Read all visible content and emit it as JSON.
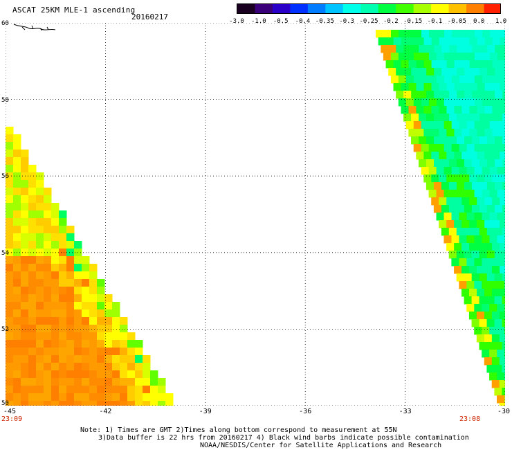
{
  "header": {
    "title": "ASCAT 25KM MLE-1 ascending",
    "date": "20160217"
  },
  "colorbar": {
    "labels": [
      "-3.0",
      "-1.0",
      "-0.5",
      "-0.4",
      "-0.35",
      "-0.3",
      "-0.25",
      "-0.2",
      "-0.15",
      "-0.1",
      "-0.05",
      "0.0",
      "1.0"
    ],
    "colors": [
      "#1a0020",
      "#3a007a",
      "#2a00c8",
      "#0030ff",
      "#007cff",
      "#00c4ff",
      "#00ffea",
      "#00ffb0",
      "#00ff40",
      "#40ff00",
      "#a8ff00",
      "#ffff00",
      "#ffc000",
      "#ff8000",
      "#ff2000"
    ]
  },
  "axes": {
    "lat_labels": [
      "60",
      "58",
      "56",
      "54",
      "52",
      "50"
    ],
    "lon_labels": [
      "-45",
      "-42",
      "-39",
      "-36",
      "-33",
      "-30"
    ],
    "lat_range": [
      50,
      60
    ],
    "lon_range": [
      -45,
      -30
    ]
  },
  "times": {
    "left": "23:09",
    "right": "23:08"
  },
  "notes": {
    "line1": "Note: 1) Times are GMT 2)Times along bottom correspond to measurement at 55N",
    "line2": "3)Data buffer is 22 hrs from 20160217 4) Black wind barbs indicate possible contamination",
    "line3": "NOAA/NESDIS/Center for Satellite Applications and Research"
  }
}
